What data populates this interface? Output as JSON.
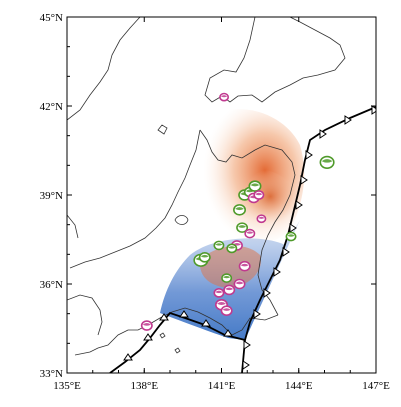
{
  "map": {
    "lon_range": [
      135,
      147
    ],
    "lat_range": [
      33,
      45
    ],
    "lon_ticks": [
      {
        "value": 135,
        "label": "135°E"
      },
      {
        "value": 138,
        "label": "138°E"
      },
      {
        "value": 141,
        "label": "141°E"
      },
      {
        "value": 144,
        "label": "144°E"
      },
      {
        "value": 147,
        "label": "147°E"
      }
    ],
    "lat_ticks": [
      {
        "value": 45,
        "label": "45°N"
      },
      {
        "value": 42,
        "label": "42°N"
      },
      {
        "value": 39,
        "label": "39°N"
      },
      {
        "value": 36,
        "label": "36°N"
      },
      {
        "value": 33,
        "label": "33°N"
      }
    ],
    "colors": {
      "coastline": "#333333",
      "trench": "#000000",
      "warm_anomaly": "#e2622a",
      "cool_anomaly": "#3b73c4",
      "mechanism_green": "#4f9a2a",
      "mechanism_magenta": "#c0398f"
    },
    "focal_mechanisms": [
      {
        "lon": 140.2,
        "lat": 36.8,
        "color": "green",
        "size": 1.3
      },
      {
        "lon": 140.35,
        "lat": 36.9,
        "color": "green",
        "size": 1.0
      },
      {
        "lon": 141.7,
        "lat": 38.5,
        "color": "green",
        "size": 1.1
      },
      {
        "lon": 141.9,
        "lat": 39.0,
        "color": "green",
        "size": 1.1
      },
      {
        "lon": 142.1,
        "lat": 39.1,
        "color": "green",
        "size": 1.0
      },
      {
        "lon": 142.3,
        "lat": 39.3,
        "color": "green",
        "size": 1.1
      },
      {
        "lon": 142.25,
        "lat": 38.9,
        "color": "magenta",
        "size": 1.0
      },
      {
        "lon": 142.45,
        "lat": 39.0,
        "color": "magenta",
        "size": 0.9
      },
      {
        "lon": 141.8,
        "lat": 37.9,
        "color": "green",
        "size": 1.0
      },
      {
        "lon": 141.6,
        "lat": 37.3,
        "color": "magenta",
        "size": 1.0
      },
      {
        "lon": 141.4,
        "lat": 37.2,
        "color": "green",
        "size": 0.9
      },
      {
        "lon": 142.55,
        "lat": 38.2,
        "color": "magenta",
        "size": 0.8
      },
      {
        "lon": 141.9,
        "lat": 36.6,
        "color": "magenta",
        "size": 1.0
      },
      {
        "lon": 141.7,
        "lat": 36.0,
        "color": "magenta",
        "size": 1.0
      },
      {
        "lon": 141.3,
        "lat": 35.8,
        "color": "magenta",
        "size": 1.0
      },
      {
        "lon": 141.0,
        "lat": 35.3,
        "color": "magenta",
        "size": 1.1
      },
      {
        "lon": 141.2,
        "lat": 35.1,
        "color": "magenta",
        "size": 1.0
      },
      {
        "lon": 140.9,
        "lat": 35.7,
        "color": "magenta",
        "size": 0.9
      },
      {
        "lon": 141.2,
        "lat": 36.2,
        "color": "green",
        "size": 0.9
      },
      {
        "lon": 142.1,
        "lat": 37.7,
        "color": "magenta",
        "size": 0.9
      },
      {
        "lon": 140.9,
        "lat": 37.3,
        "color": "green",
        "size": 0.9
      },
      {
        "lon": 145.1,
        "lat": 40.1,
        "color": "green",
        "size": 1.3
      },
      {
        "lon": 143.7,
        "lat": 37.6,
        "color": "green",
        "size": 0.9
      },
      {
        "lon": 141.1,
        "lat": 42.3,
        "color": "magenta",
        "size": 0.8
      },
      {
        "lon": 138.1,
        "lat": 34.6,
        "color": "magenta",
        "size": 1.0
      }
    ]
  }
}
